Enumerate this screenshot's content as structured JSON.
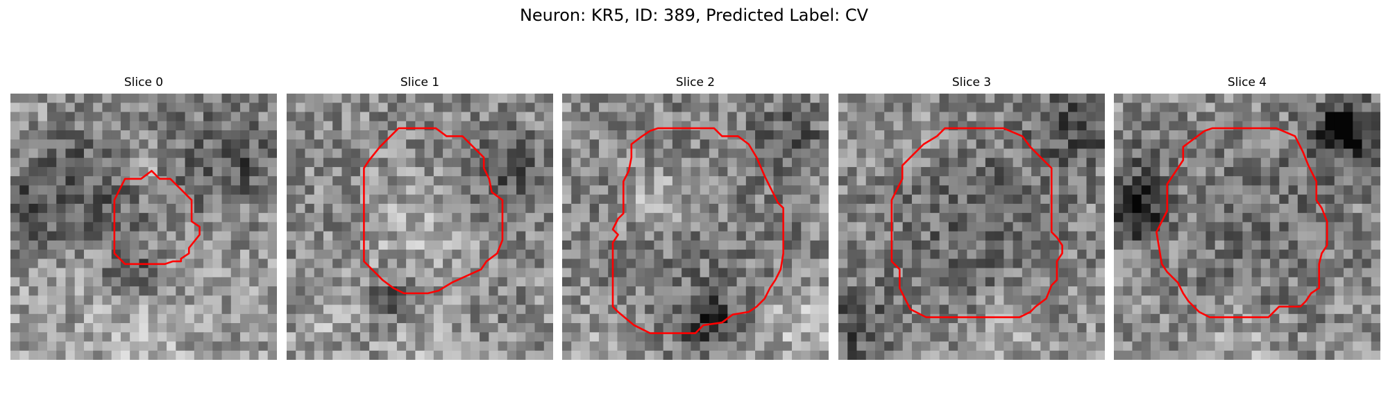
{
  "title": "Neuron: KR5, ID: 389, Predicted Label: CV",
  "panels": [
    {
      "label": "Slice 0",
      "seed": 11,
      "blobs": [
        {
          "c": [
            0.27,
            0.32
          ],
          "r": 0.16,
          "a": -0.2
        },
        {
          "c": [
            0.5,
            0.25
          ],
          "r": 0.07,
          "a": 0.25
        },
        {
          "c": [
            0.62,
            0.2
          ],
          "r": 0.18,
          "a": -0.15
        },
        {
          "c": [
            0.06,
            0.45
          ],
          "r": 0.1,
          "a": -0.25
        },
        {
          "c": [
            0.55,
            0.55
          ],
          "r": 0.2,
          "a": -0.05
        },
        {
          "c": [
            0.45,
            0.68
          ],
          "r": 0.06,
          "a": -0.3
        },
        {
          "c": [
            0.9,
            0.25
          ],
          "r": 0.12,
          "a": -0.22
        },
        {
          "c": [
            0.5,
            0.9
          ],
          "r": 0.14,
          "a": 0.12
        }
      ],
      "contour": [
        [
          0.53,
          0.29
        ],
        [
          0.56,
          0.32
        ],
        [
          0.6,
          0.32
        ],
        [
          0.64,
          0.36
        ],
        [
          0.68,
          0.4
        ],
        [
          0.68,
          0.48
        ],
        [
          0.71,
          0.5
        ],
        [
          0.71,
          0.53
        ],
        [
          0.67,
          0.58
        ],
        [
          0.67,
          0.6
        ],
        [
          0.64,
          0.62
        ],
        [
          0.64,
          0.63
        ],
        [
          0.61,
          0.63
        ],
        [
          0.58,
          0.64
        ],
        [
          0.43,
          0.64
        ],
        [
          0.39,
          0.6
        ],
        [
          0.39,
          0.4
        ],
        [
          0.43,
          0.32
        ],
        [
          0.49,
          0.32
        ]
      ]
    },
    {
      "label": "Slice 1",
      "seed": 23,
      "blobs": [
        {
          "c": [
            0.5,
            0.5
          ],
          "r": 0.2,
          "a": 0.3
        },
        {
          "c": [
            0.5,
            0.5
          ],
          "r": 0.33,
          "a": -0.22
        },
        {
          "c": [
            0.4,
            0.78
          ],
          "r": 0.05,
          "a": -0.4
        },
        {
          "c": [
            0.82,
            0.28
          ],
          "r": 0.12,
          "a": -0.18
        },
        {
          "c": [
            0.15,
            0.85
          ],
          "r": 0.1,
          "a": 0.1
        },
        {
          "c": [
            0.5,
            0.95
          ],
          "r": 0.12,
          "a": 0.15
        }
      ],
      "contour": [
        [
          0.42,
          0.13
        ],
        [
          0.56,
          0.13
        ],
        [
          0.6,
          0.16
        ],
        [
          0.66,
          0.16
        ],
        [
          0.7,
          0.2
        ],
        [
          0.74,
          0.24
        ],
        [
          0.74,
          0.28
        ],
        [
          0.76,
          0.32
        ],
        [
          0.77,
          0.37
        ],
        [
          0.81,
          0.4
        ],
        [
          0.81,
          0.55
        ],
        [
          0.79,
          0.6
        ],
        [
          0.75,
          0.63
        ],
        [
          0.73,
          0.66
        ],
        [
          0.62,
          0.71
        ],
        [
          0.57,
          0.74
        ],
        [
          0.53,
          0.75
        ],
        [
          0.44,
          0.75
        ],
        [
          0.4,
          0.73
        ],
        [
          0.36,
          0.7
        ],
        [
          0.34,
          0.68
        ],
        [
          0.32,
          0.66
        ],
        [
          0.29,
          0.63
        ],
        [
          0.29,
          0.28
        ],
        [
          0.31,
          0.25
        ],
        [
          0.35,
          0.2
        ],
        [
          0.38,
          0.17
        ]
      ]
    },
    {
      "label": "Slice 2",
      "seed": 37,
      "blobs": [
        {
          "c": [
            0.5,
            0.52
          ],
          "r": 0.22,
          "a": 0.08
        },
        {
          "c": [
            0.35,
            0.4
          ],
          "r": 0.1,
          "a": 0.18
        },
        {
          "c": [
            0.5,
            0.52
          ],
          "r": 0.36,
          "a": -0.2
        },
        {
          "c": [
            0.55,
            0.85
          ],
          "r": 0.08,
          "a": -0.3
        },
        {
          "c": [
            0.88,
            0.12
          ],
          "r": 0.1,
          "a": -0.18
        },
        {
          "c": [
            0.9,
            0.85
          ],
          "r": 0.1,
          "a": 0.2
        },
        {
          "c": [
            0.1,
            0.92
          ],
          "r": 0.1,
          "a": 0.1
        }
      ],
      "contour": [
        [
          0.36,
          0.13
        ],
        [
          0.46,
          0.13
        ],
        [
          0.5,
          0.13
        ],
        [
          0.57,
          0.13
        ],
        [
          0.6,
          0.16
        ],
        [
          0.66,
          0.16
        ],
        [
          0.7,
          0.19
        ],
        [
          0.73,
          0.24
        ],
        [
          0.76,
          0.31
        ],
        [
          0.81,
          0.41
        ],
        [
          0.83,
          0.43
        ],
        [
          0.83,
          0.6
        ],
        [
          0.82,
          0.66
        ],
        [
          0.8,
          0.7
        ],
        [
          0.78,
          0.73
        ],
        [
          0.76,
          0.77
        ],
        [
          0.73,
          0.8
        ],
        [
          0.7,
          0.82
        ],
        [
          0.64,
          0.83
        ],
        [
          0.6,
          0.86
        ],
        [
          0.53,
          0.87
        ],
        [
          0.5,
          0.9
        ],
        [
          0.33,
          0.9
        ],
        [
          0.27,
          0.87
        ],
        [
          0.21,
          0.82
        ],
        [
          0.19,
          0.8
        ],
        [
          0.19,
          0.56
        ],
        [
          0.21,
          0.53
        ],
        [
          0.19,
          0.51
        ],
        [
          0.21,
          0.47
        ],
        [
          0.23,
          0.45
        ],
        [
          0.23,
          0.33
        ],
        [
          0.25,
          0.29
        ],
        [
          0.26,
          0.24
        ],
        [
          0.26,
          0.19
        ],
        [
          0.3,
          0.16
        ],
        [
          0.33,
          0.14
        ]
      ]
    },
    {
      "label": "Slice 3",
      "seed": 53,
      "blobs": [
        {
          "c": [
            0.5,
            0.48
          ],
          "r": 0.24,
          "a": -0.08
        },
        {
          "c": [
            0.5,
            0.48
          ],
          "r": 0.38,
          "a": -0.12
        },
        {
          "c": [
            0.9,
            0.12
          ],
          "r": 0.12,
          "a": -0.25
        },
        {
          "c": [
            0.05,
            0.88
          ],
          "r": 0.1,
          "a": -0.28
        },
        {
          "c": [
            0.65,
            0.88
          ],
          "r": 0.1,
          "a": 0.15
        },
        {
          "c": [
            0.3,
            0.2
          ],
          "r": 0.08,
          "a": 0.12
        }
      ],
      "contour": [
        [
          0.42,
          0.13
        ],
        [
          0.46,
          0.13
        ],
        [
          0.5,
          0.13
        ],
        [
          0.62,
          0.13
        ],
        [
          0.69,
          0.16
        ],
        [
          0.72,
          0.2
        ],
        [
          0.76,
          0.24
        ],
        [
          0.8,
          0.28
        ],
        [
          0.8,
          0.52
        ],
        [
          0.82,
          0.54
        ],
        [
          0.84,
          0.57
        ],
        [
          0.84,
          0.6
        ],
        [
          0.82,
          0.63
        ],
        [
          0.82,
          0.7
        ],
        [
          0.8,
          0.72
        ],
        [
          0.78,
          0.77
        ],
        [
          0.74,
          0.8
        ],
        [
          0.72,
          0.82
        ],
        [
          0.68,
          0.84
        ],
        [
          0.33,
          0.84
        ],
        [
          0.27,
          0.81
        ],
        [
          0.25,
          0.77
        ],
        [
          0.23,
          0.73
        ],
        [
          0.23,
          0.66
        ],
        [
          0.2,
          0.63
        ],
        [
          0.2,
          0.4
        ],
        [
          0.22,
          0.36
        ],
        [
          0.24,
          0.32
        ],
        [
          0.24,
          0.27
        ],
        [
          0.28,
          0.23
        ],
        [
          0.32,
          0.19
        ],
        [
          0.37,
          0.16
        ],
        [
          0.4,
          0.13
        ]
      ]
    },
    {
      "label": "Slice 4",
      "seed": 71,
      "blobs": [
        {
          "c": [
            0.55,
            0.5
          ],
          "r": 0.24,
          "a": -0.04
        },
        {
          "c": [
            0.55,
            0.5
          ],
          "r": 0.4,
          "a": -0.12
        },
        {
          "c": [
            0.08,
            0.44
          ],
          "r": 0.07,
          "a": -0.5
        },
        {
          "c": [
            0.85,
            0.14
          ],
          "r": 0.06,
          "a": -0.45
        },
        {
          "c": [
            0.9,
            0.12
          ],
          "r": 0.12,
          "a": -0.2
        },
        {
          "c": [
            0.05,
            0.25
          ],
          "r": 0.1,
          "a": -0.15
        },
        {
          "c": [
            0.5,
            0.95
          ],
          "r": 0.1,
          "a": 0.15
        }
      ],
      "contour": [
        [
          0.37,
          0.13
        ],
        [
          0.46,
          0.13
        ],
        [
          0.5,
          0.13
        ],
        [
          0.61,
          0.13
        ],
        [
          0.68,
          0.16
        ],
        [
          0.71,
          0.22
        ],
        [
          0.73,
          0.27
        ],
        [
          0.76,
          0.33
        ],
        [
          0.76,
          0.4
        ],
        [
          0.78,
          0.43
        ],
        [
          0.8,
          0.48
        ],
        [
          0.8,
          0.57
        ],
        [
          0.78,
          0.6
        ],
        [
          0.77,
          0.64
        ],
        [
          0.77,
          0.73
        ],
        [
          0.74,
          0.75
        ],
        [
          0.72,
          0.78
        ],
        [
          0.7,
          0.8
        ],
        [
          0.62,
          0.8
        ],
        [
          0.6,
          0.82
        ],
        [
          0.58,
          0.84
        ],
        [
          0.36,
          0.84
        ],
        [
          0.32,
          0.82
        ],
        [
          0.3,
          0.8
        ],
        [
          0.28,
          0.78
        ],
        [
          0.26,
          0.75
        ],
        [
          0.24,
          0.71
        ],
        [
          0.2,
          0.67
        ],
        [
          0.18,
          0.64
        ],
        [
          0.16,
          0.52
        ],
        [
          0.18,
          0.48
        ],
        [
          0.2,
          0.44
        ],
        [
          0.2,
          0.34
        ],
        [
          0.22,
          0.31
        ],
        [
          0.24,
          0.28
        ],
        [
          0.26,
          0.25
        ],
        [
          0.26,
          0.2
        ],
        [
          0.3,
          0.17
        ],
        [
          0.34,
          0.14
        ]
      ]
    }
  ]
}
